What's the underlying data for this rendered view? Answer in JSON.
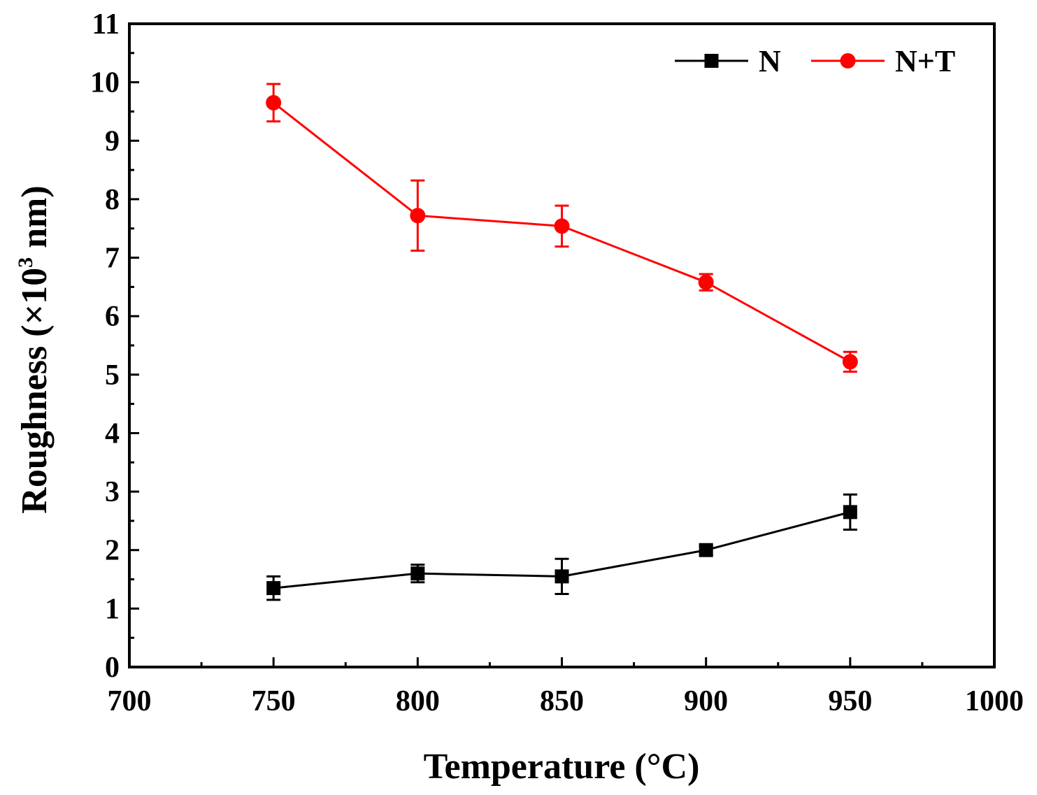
{
  "chart_data": {
    "type": "line",
    "title": "",
    "xlabel": "Temperature (°C)",
    "ylabel_prefix": "Roughness (×10",
    "ylabel_exponent": "3",
    "ylabel_suffix": " nm)",
    "xlim": [
      700,
      1000
    ],
    "ylim": [
      0,
      11
    ],
    "x_major_ticks": [
      700,
      750,
      800,
      850,
      900,
      950,
      1000
    ],
    "x_minor_ticks": [
      725,
      775,
      825,
      875,
      925,
      975
    ],
    "y_major_ticks": [
      0,
      1,
      2,
      3,
      4,
      5,
      6,
      7,
      8,
      9,
      10,
      11
    ],
    "y_minor_ticks": [
      0.5,
      1.5,
      2.5,
      3.5,
      4.5,
      5.5,
      6.5,
      7.5,
      8.5,
      9.5,
      10.5
    ],
    "legend_position": "top-right",
    "grid": false,
    "series": [
      {
        "name": "N",
        "color": "#000000",
        "marker": "square",
        "x": [
          750,
          800,
          850,
          900,
          950
        ],
        "y": [
          1.35,
          1.6,
          1.55,
          2.0,
          2.65
        ],
        "error": [
          0.2,
          0.15,
          0.3,
          0.08,
          0.3
        ]
      },
      {
        "name": "N+T",
        "color": "#ff0000",
        "marker": "circle",
        "x": [
          750,
          800,
          850,
          900,
          950
        ],
        "y": [
          9.65,
          7.72,
          7.54,
          6.58,
          5.22
        ],
        "error": [
          0.32,
          0.6,
          0.35,
          0.14,
          0.17
        ]
      }
    ]
  }
}
